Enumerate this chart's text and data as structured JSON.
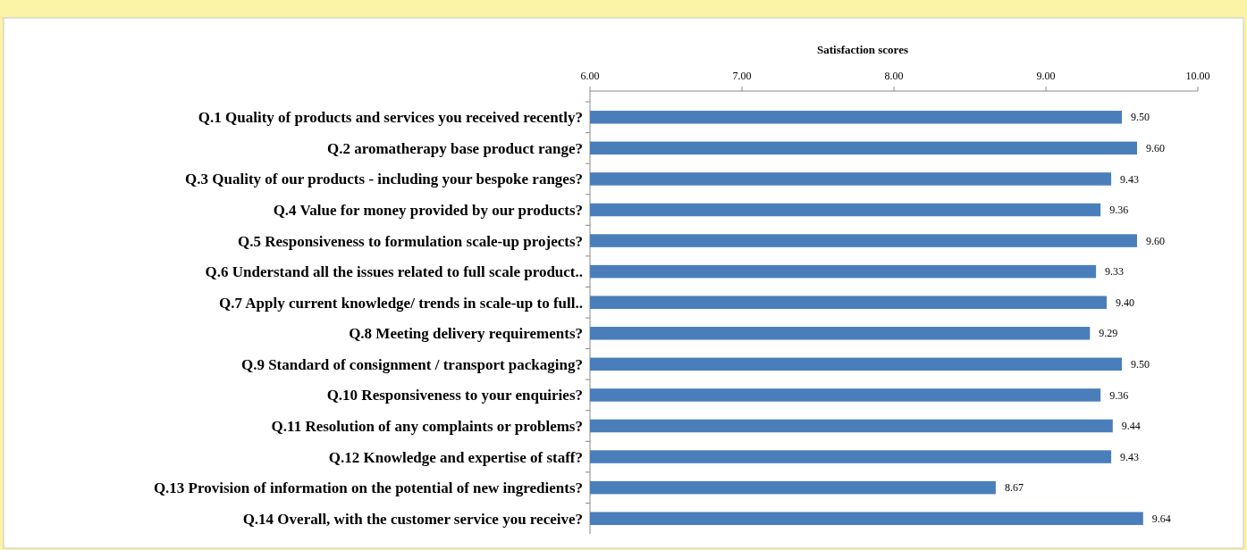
{
  "chart_data": {
    "type": "bar",
    "orientation": "horizontal",
    "xlabel": "Satisfaction scores",
    "categories": [
      "Q.1 Quality of products and services you received recently?",
      "Q.2 aromatherapy base product range?",
      "Q.3 Quality of our products - including your bespoke ranges?",
      "Q.4 Value for money provided by our products?",
      "Q.5 Responsiveness to formulation scale-up projects?",
      "Q.6 Understand all the issues related to full scale product..",
      "Q.7 Apply current knowledge/ trends in scale-up to full..",
      "Q.8 Meeting delivery requirements?",
      "Q.9 Standard of consignment / transport packaging?",
      "Q.10 Responsiveness to your enquiries?",
      "Q.11 Resolution of any complaints or problems?",
      "Q.12 Knowledge and expertise of staff?",
      "Q.13 Provision of information on the potential of new ingredients?",
      "Q.14 Overall, with the customer service you receive?"
    ],
    "values": [
      9.5,
      9.6,
      9.43,
      9.36,
      9.6,
      9.33,
      9.4,
      9.29,
      9.5,
      9.36,
      9.44,
      9.43,
      8.67,
      9.64
    ],
    "value_labels": [
      "9.50",
      "9.60",
      "9.43",
      "9.36",
      "9.60",
      "9.33",
      "9.40",
      "9.29",
      "9.50",
      "9.36",
      "9.44",
      "9.43",
      "8.67",
      "9.64"
    ],
    "color": "#4a7ebb",
    "xlim": [
      6,
      10
    ],
    "xticks": [
      {
        "value": 6,
        "label": "6.00"
      },
      {
        "value": 7,
        "label": "7.00"
      },
      {
        "value": 8,
        "label": "8.00"
      },
      {
        "value": 9,
        "label": "9.00"
      },
      {
        "value": 10,
        "label": "10.00"
      }
    ],
    "grid": false
  }
}
